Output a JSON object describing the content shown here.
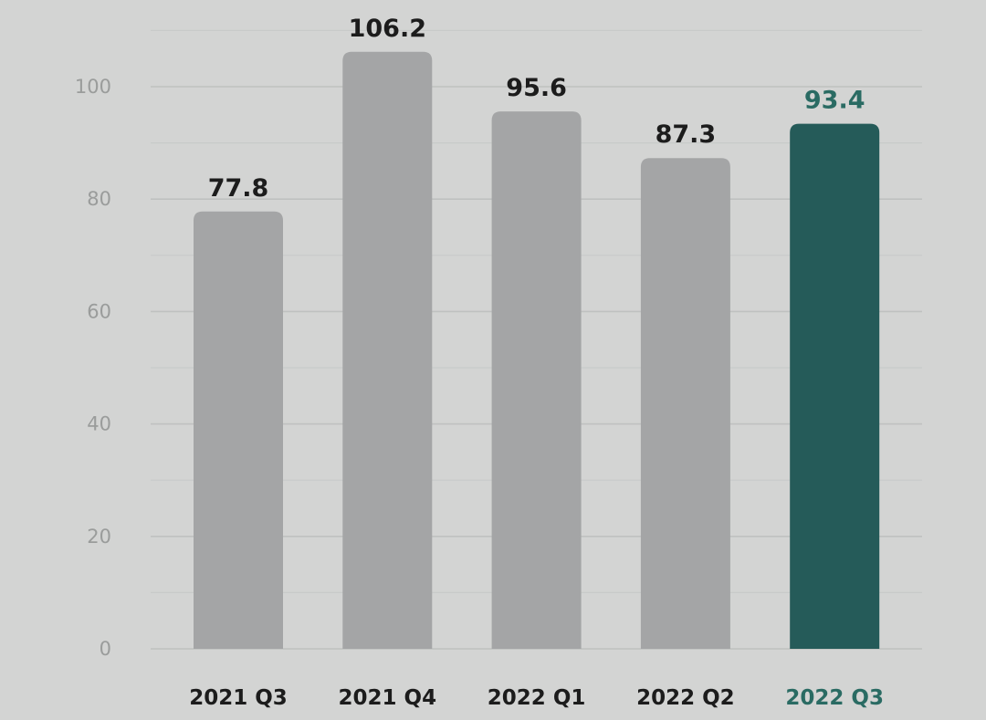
{
  "chart_data": {
    "type": "bar",
    "title": "",
    "xlabel": "",
    "ylabel": "",
    "categories": [
      "2021 Q3",
      "2021 Q4",
      "2022 Q1",
      "2022 Q2",
      "2022 Q3"
    ],
    "values": [
      77.8,
      106.2,
      95.6,
      87.3,
      93.4
    ],
    "data_labels": [
      "77.8",
      "106.2",
      "95.6",
      "87.3",
      "93.4"
    ],
    "ylim": [
      0,
      110
    ],
    "yticks": [
      0,
      20,
      40,
      60,
      80,
      100
    ],
    "ytick_labels": [
      "0",
      "20",
      "40",
      "60",
      "80",
      "100"
    ],
    "grid": true,
    "legend": "none",
    "highlight_index": 4
  },
  "colors": {
    "bar_default": "#a4a5a6",
    "bar_highlight": "#255b59",
    "label_default": "#1c1c1c",
    "label_highlight": "#2a6b63",
    "background": "#d3d4d3"
  }
}
